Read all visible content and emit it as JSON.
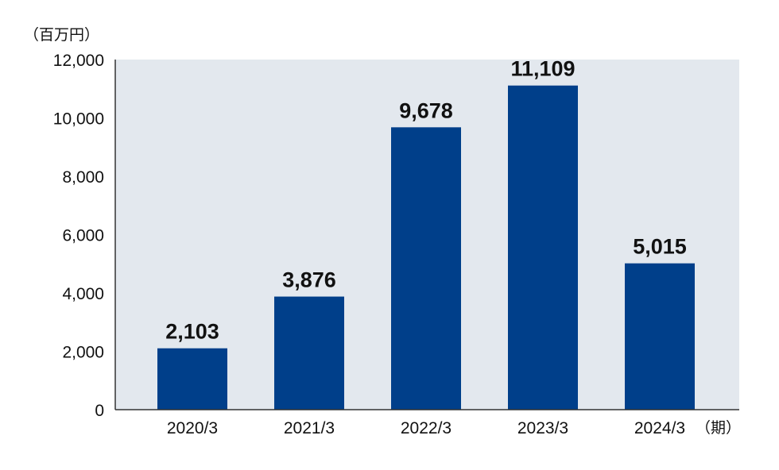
{
  "chart_data": {
    "type": "bar",
    "categories": [
      "2020/3",
      "2021/3",
      "2022/3",
      "2023/3",
      "2024/3"
    ],
    "values": [
      2103,
      3876,
      9678,
      11109,
      5015
    ],
    "value_labels": [
      "2,103",
      "3,876",
      "9,678",
      "11,109",
      "5,015"
    ],
    "y_unit_label": "（百万円）",
    "x_unit_label": "（期）",
    "ylim": [
      0,
      12000
    ],
    "yticks": [
      0,
      2000,
      4000,
      6000,
      8000,
      10000,
      12000
    ],
    "ytick_labels": [
      "0",
      "2,000",
      "4,000",
      "6,000",
      "8,000",
      "10,000",
      "12,000"
    ],
    "grid": false,
    "colors": {
      "bar": "#003F8A",
      "plot_background": "#E3E8EE",
      "axis": "#333333",
      "text": "#111111"
    }
  }
}
